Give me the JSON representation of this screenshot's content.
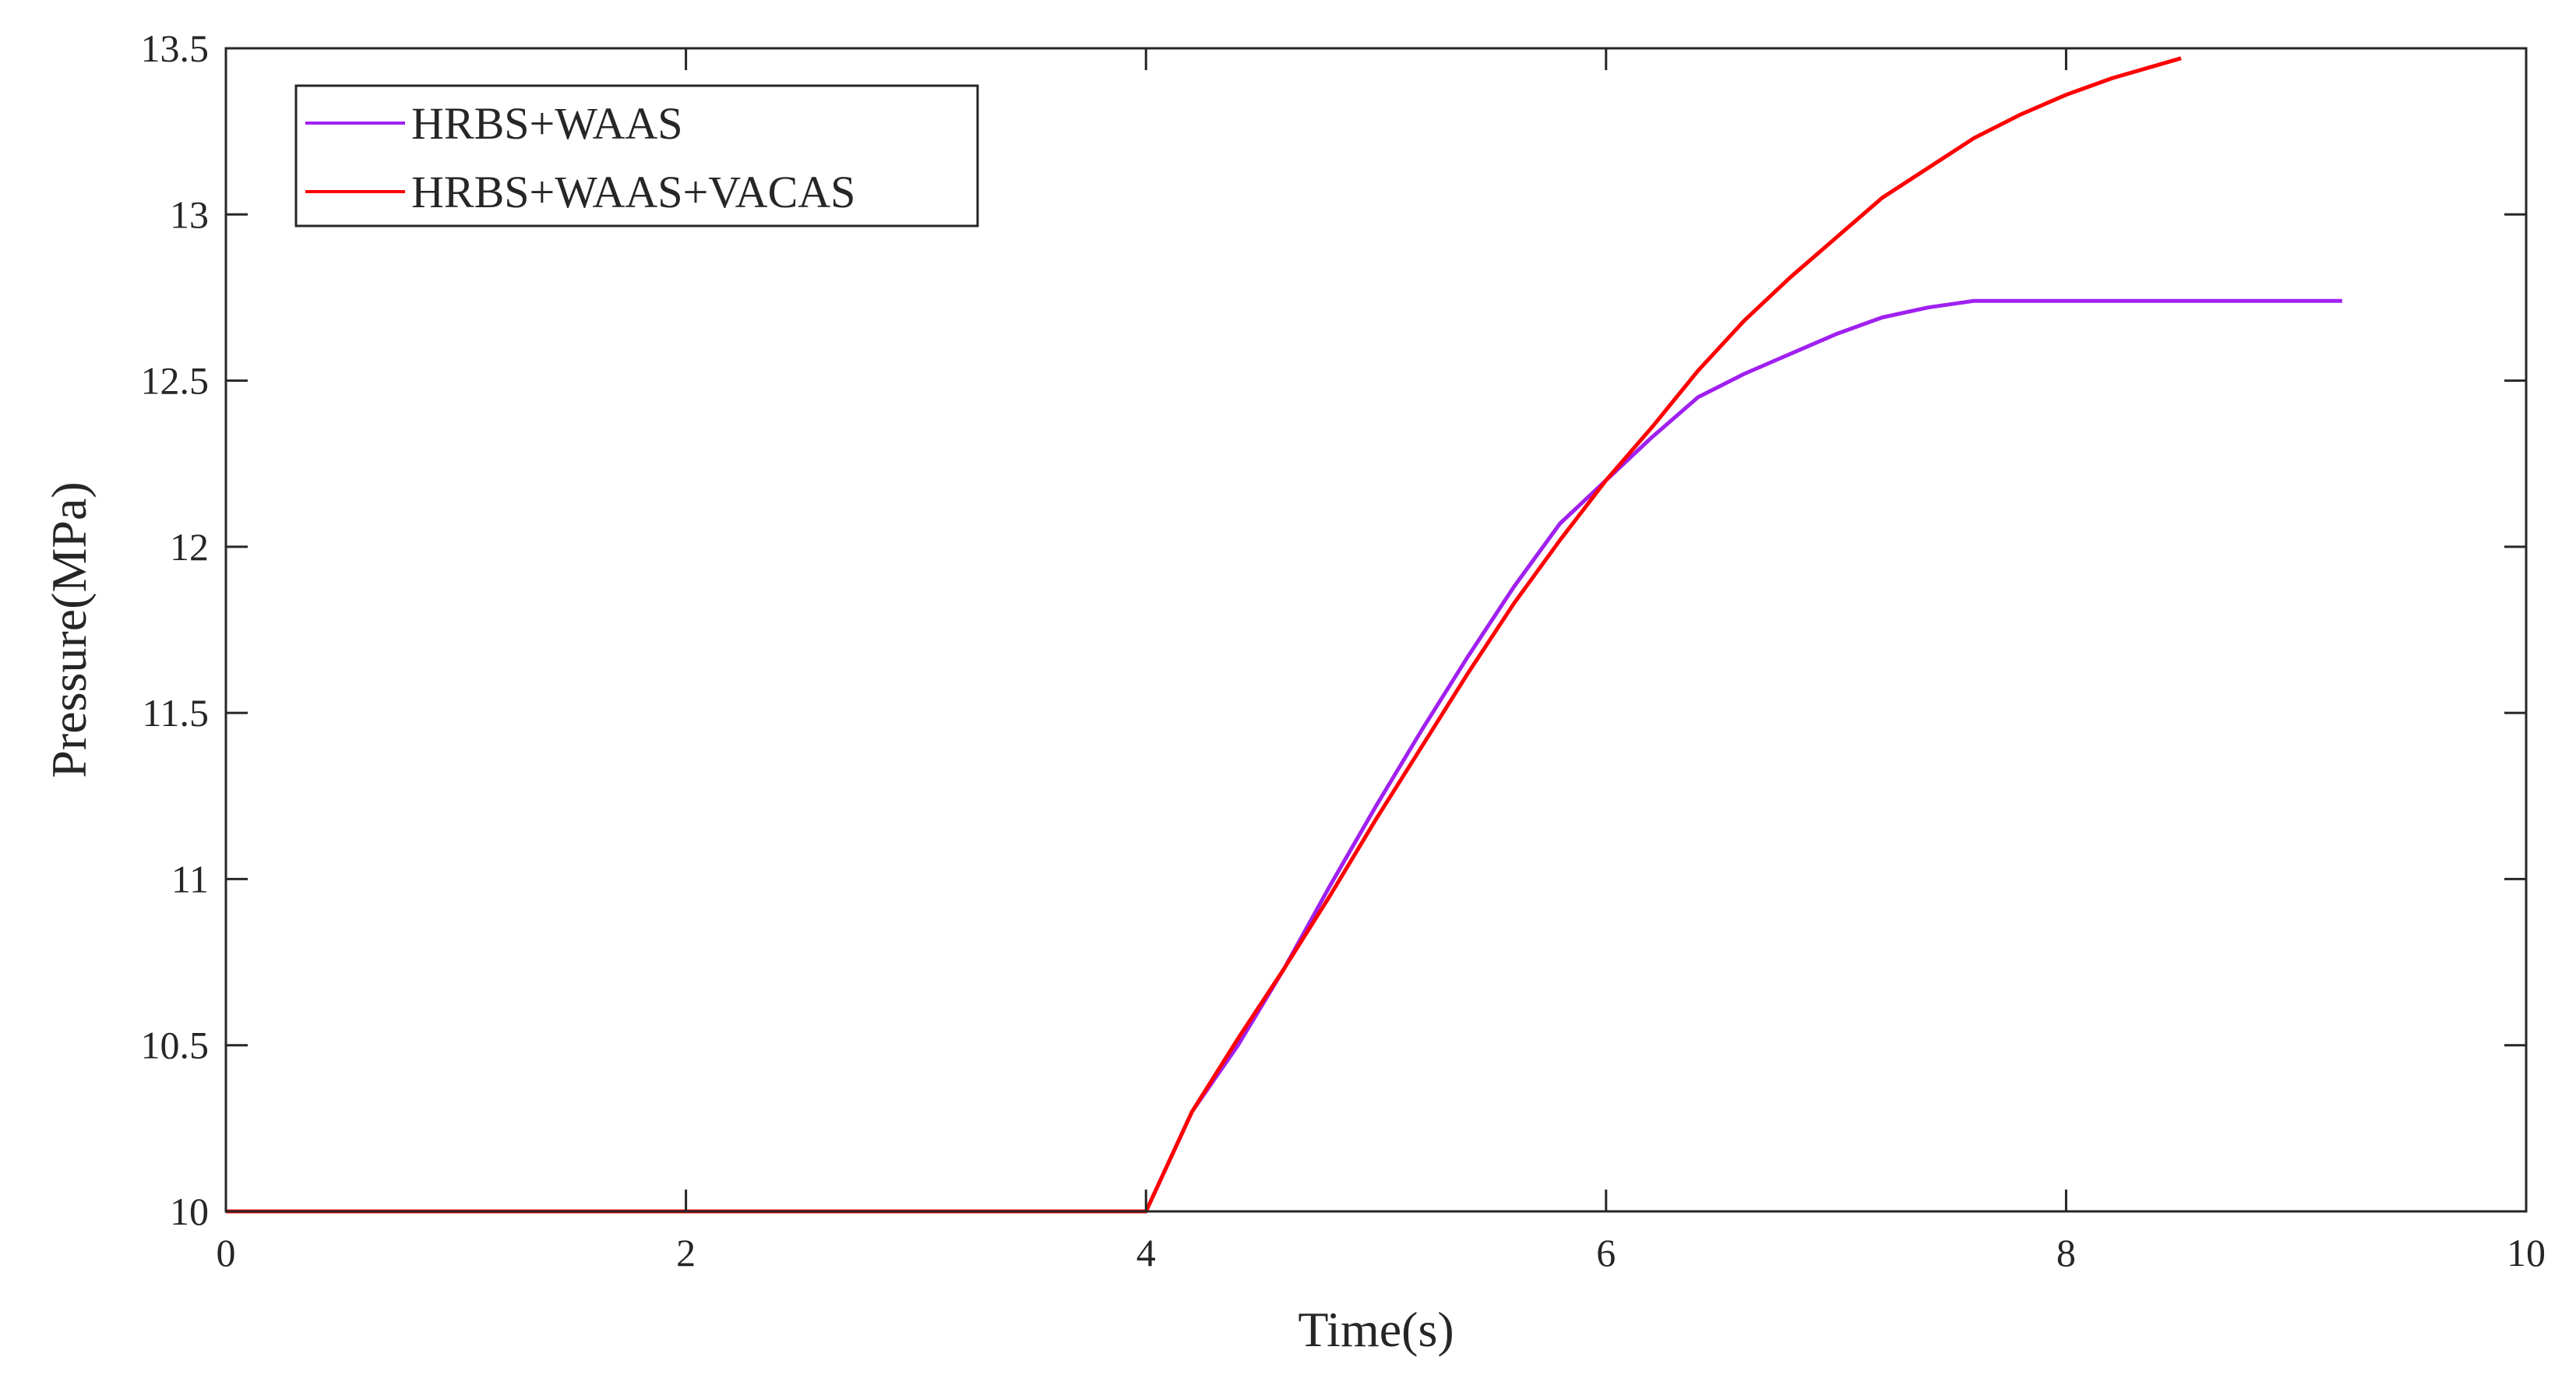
{
  "chart_data": {
    "type": "line",
    "xlabel": "Time(s)",
    "ylabel": "Pressure(MPa)",
    "xlim": [
      0,
      10
    ],
    "ylim": [
      10,
      13.5
    ],
    "xticks": [
      0,
      2,
      4,
      6,
      8,
      10
    ],
    "yticks": [
      10,
      10.5,
      11,
      11.5,
      12,
      12.5,
      13,
      13.5
    ],
    "xtick_labels": [
      "0",
      "2",
      "4",
      "6",
      "8",
      "10"
    ],
    "ytick_labels": [
      "10",
      "10.5",
      "11",
      "11.5",
      "12",
      "12.5",
      "13",
      "13.5"
    ],
    "grid": false,
    "legend_position": "top-left",
    "series": [
      {
        "name": "HRBS+WAAS",
        "color": "#a020f0",
        "x": [
          0,
          4.0,
          4.2,
          4.4,
          4.6,
          4.8,
          5.0,
          5.2,
          5.4,
          5.6,
          5.8,
          6.0,
          6.2,
          6.4,
          6.6,
          6.8,
          7.0,
          7.2,
          7.4,
          7.6,
          8.0,
          8.5,
          9.2
        ],
        "y": [
          10,
          10,
          10.3,
          10.5,
          10.73,
          10.98,
          11.22,
          11.45,
          11.67,
          11.88,
          12.07,
          12.2,
          12.33,
          12.45,
          12.52,
          12.58,
          12.64,
          12.69,
          12.72,
          12.74,
          12.74,
          12.74,
          12.74
        ]
      },
      {
        "name": "HRBS+WAAS+VACAS",
        "color": "#ff0000",
        "x": [
          0,
          4.0,
          4.2,
          4.4,
          4.6,
          4.8,
          5.0,
          5.2,
          5.4,
          5.6,
          5.8,
          6.0,
          6.2,
          6.4,
          6.6,
          6.8,
          7.0,
          7.2,
          7.4,
          7.6,
          7.8,
          8.0,
          8.2,
          8.4,
          8.5
        ],
        "y": [
          10,
          10,
          10.3,
          10.52,
          10.73,
          10.95,
          11.18,
          11.4,
          11.62,
          11.83,
          12.02,
          12.2,
          12.36,
          12.53,
          12.68,
          12.81,
          12.93,
          13.05,
          13.14,
          13.23,
          13.3,
          13.36,
          13.41,
          13.45,
          13.47
        ]
      }
    ]
  }
}
